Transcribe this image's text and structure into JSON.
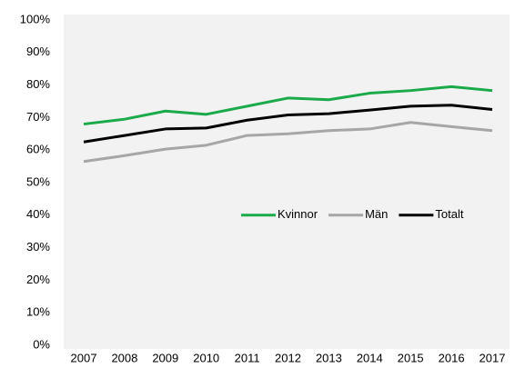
{
  "chart_data": {
    "type": "line",
    "categories": [
      "2007",
      "2008",
      "2009",
      "2010",
      "2011",
      "2012",
      "2013",
      "2014",
      "2015",
      "2016",
      "2017"
    ],
    "series": [
      {
        "name": "Kvinnor",
        "color": "#1aaa4a",
        "values": [
          68,
          69.5,
          72,
          71,
          73.5,
          76,
          75.5,
          77.5,
          78.3,
          79.5,
          78.3
        ]
      },
      {
        "name": "Män",
        "color": "#a6a6a6",
        "values": [
          56.5,
          58.3,
          60.3,
          61.5,
          64.5,
          65,
          66,
          66.5,
          68.5,
          67.2,
          66
        ]
      },
      {
        "name": "Totalt",
        "color": "#000000",
        "values": [
          62.5,
          64.5,
          66.5,
          66.8,
          69.2,
          70.8,
          71.2,
          72.3,
          73.5,
          73.8,
          72.5
        ]
      }
    ],
    "ylim": [
      0,
      100
    ],
    "yticks": [
      {
        "value": 0,
        "label": "0%"
      },
      {
        "value": 10,
        "label": "10%"
      },
      {
        "value": 20,
        "label": "20%"
      },
      {
        "value": 30,
        "label": "30%"
      },
      {
        "value": 40,
        "label": "40%"
      },
      {
        "value": 50,
        "label": "50%"
      },
      {
        "value": 60,
        "label": "60%"
      },
      {
        "value": 70,
        "label": "70%"
      },
      {
        "value": 80,
        "label": "80%"
      },
      {
        "value": 90,
        "label": "90%"
      },
      {
        "value": 100,
        "label": "100%"
      }
    ],
    "grid": false,
    "legend": "right"
  }
}
